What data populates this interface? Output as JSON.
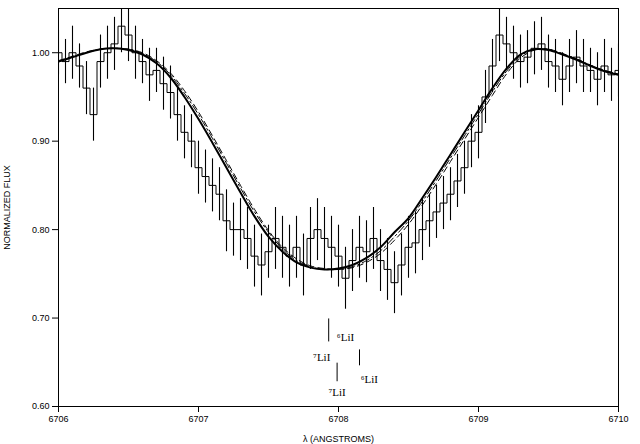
{
  "chart_data": {
    "type": "line",
    "x_label": "λ (ANGSTROMS)",
    "y_label": "NORMALIZED FLUX",
    "xlim": [
      6706,
      6710
    ],
    "xticks": [
      6706,
      6707,
      6708,
      6709,
      6710
    ],
    "ylim": [
      0.6,
      1.05
    ],
    "yticks": [
      {
        "value": 0.6,
        "label": "0.60"
      },
      {
        "value": 0.7,
        "label": "0.70"
      },
      {
        "value": 0.8,
        "label": "0.80"
      },
      {
        "value": 0.9,
        "label": "0.90"
      },
      {
        "value": 1.0,
        "label": "1.00"
      }
    ],
    "grid": false,
    "series": [
      {
        "type": "step",
        "color": "#000000",
        "line_style": "solid",
        "x": [
          6706.0,
          6706.05,
          6706.1,
          6706.15,
          6706.2,
          6706.25,
          6706.3,
          6706.35,
          6706.4,
          6706.45,
          6706.5,
          6706.55,
          6706.6,
          6706.65,
          6706.7,
          6706.75,
          6706.8,
          6706.85,
          6706.9,
          6706.95,
          6707.0,
          6707.05,
          6707.1,
          6707.15,
          6707.2,
          6707.25,
          6707.3,
          6707.35,
          6707.4,
          6707.45,
          6707.5,
          6707.55,
          6707.6,
          6707.65,
          6707.7,
          6707.75,
          6707.8,
          6707.85,
          6707.9,
          6707.95,
          6708.0,
          6708.05,
          6708.1,
          6708.15,
          6708.2,
          6708.25,
          6708.3,
          6708.35,
          6708.4,
          6708.45,
          6708.5,
          6708.55,
          6708.6,
          6708.65,
          6708.7,
          6708.75,
          6708.8,
          6708.85,
          6708.9,
          6708.95,
          6709.0,
          6709.05,
          6709.1,
          6709.15,
          6709.2,
          6709.25,
          6709.3,
          6709.35,
          6709.4,
          6709.45,
          6709.5,
          6709.55,
          6709.6,
          6709.65,
          6709.7,
          6709.75,
          6709.8,
          6709.85,
          6709.9,
          6709.95,
          6710.0
        ],
        "values": [
          1.0,
          0.99,
          1.0,
          0.985,
          0.96,
          0.93,
          0.99,
          1.0,
          1.01,
          1.03,
          1.02,
          1.0,
          0.99,
          0.975,
          0.98,
          0.965,
          0.955,
          0.93,
          0.91,
          0.9,
          0.87,
          0.86,
          0.85,
          0.84,
          0.81,
          0.8,
          0.8,
          0.79,
          0.77,
          0.76,
          0.775,
          0.79,
          0.78,
          0.77,
          0.78,
          0.76,
          0.79,
          0.8,
          0.79,
          0.78,
          0.77,
          0.745,
          0.765,
          0.78,
          0.775,
          0.79,
          0.765,
          0.755,
          0.74,
          0.76,
          0.78,
          0.785,
          0.8,
          0.81,
          0.82,
          0.83,
          0.84,
          0.855,
          0.87,
          0.9,
          0.91,
          0.95,
          0.985,
          1.02,
          1.01,
          1.0,
          0.99,
          0.995,
          1.005,
          1.01,
          0.99,
          0.985,
          0.97,
          0.985,
          0.995,
          0.985,
          0.98,
          0.97,
          0.985,
          0.975,
          0.98
        ],
        "errors": [
          0.025,
          0.025,
          0.03,
          0.025,
          0.03,
          0.03,
          0.03,
          0.03,
          0.03,
          0.03,
          0.03,
          0.03,
          0.025,
          0.03,
          0.025,
          0.03,
          0.03,
          0.03,
          0.03,
          0.03,
          0.03,
          0.03,
          0.03,
          0.03,
          0.035,
          0.03,
          0.035,
          0.035,
          0.035,
          0.035,
          0.03,
          0.035,
          0.035,
          0.035,
          0.035,
          0.035,
          0.035,
          0.035,
          0.035,
          0.035,
          0.035,
          0.035,
          0.035,
          0.035,
          0.035,
          0.035,
          0.035,
          0.035,
          0.035,
          0.035,
          0.035,
          0.035,
          0.035,
          0.03,
          0.03,
          0.03,
          0.03,
          0.03,
          0.03,
          0.03,
          0.03,
          0.03,
          0.03,
          0.03,
          0.03,
          0.03,
          0.03,
          0.03,
          0.03,
          0.03,
          0.03,
          0.03,
          0.03,
          0.03,
          0.03,
          0.03,
          0.025,
          0.03,
          0.03,
          0.03,
          0.03
        ]
      },
      {
        "type": "line",
        "color": "#000000",
        "line_style": "solid",
        "x": [
          6706.0,
          6706.1,
          6706.2,
          6706.3,
          6706.4,
          6706.5,
          6706.6,
          6706.7,
          6706.8,
          6706.9,
          6707.0,
          6707.1,
          6707.2,
          6707.3,
          6707.4,
          6707.5,
          6707.6,
          6707.7,
          6707.8,
          6707.9,
          6708.0,
          6708.1,
          6708.2,
          6708.3,
          6708.4,
          6708.5,
          6708.6,
          6708.7,
          6708.8,
          6708.9,
          6709.0,
          6709.1,
          6709.2,
          6709.3,
          6709.4,
          6709.5,
          6709.6,
          6709.7,
          6709.8,
          6709.9,
          6710.0
        ],
        "values": [
          0.99,
          0.995,
          1.0,
          1.004,
          1.005,
          1.003,
          0.998,
          0.988,
          0.972,
          0.95,
          0.925,
          0.898,
          0.87,
          0.842,
          0.815,
          0.792,
          0.775,
          0.763,
          0.757,
          0.755,
          0.756,
          0.76,
          0.768,
          0.78,
          0.797,
          0.813,
          0.836,
          0.86,
          0.885,
          0.91,
          0.935,
          0.96,
          0.982,
          0.998,
          1.004,
          1.003,
          0.998,
          0.992,
          0.985,
          0.979,
          0.975
        ]
      },
      {
        "type": "line",
        "color": "#000000",
        "line_style": "dashed",
        "x": [
          6706.0,
          6706.1,
          6706.2,
          6706.3,
          6706.4,
          6706.5,
          6706.6,
          6706.7,
          6706.8,
          6706.9,
          6707.0,
          6707.1,
          6707.2,
          6707.3,
          6707.4,
          6707.5,
          6707.6,
          6707.7,
          6707.8,
          6707.9,
          6708.0,
          6708.1,
          6708.2,
          6708.3,
          6708.4,
          6708.5,
          6708.6,
          6708.7,
          6708.8,
          6708.9,
          6709.0,
          6709.1,
          6709.2,
          6709.3,
          6709.4,
          6709.5,
          6709.6,
          6709.7,
          6709.8,
          6709.9,
          6710.0
        ],
        "values": [
          0.991,
          0.996,
          1.001,
          1.004,
          1.005,
          1.004,
          1.0,
          0.991,
          0.977,
          0.957,
          0.933,
          0.906,
          0.878,
          0.85,
          0.823,
          0.799,
          0.78,
          0.767,
          0.759,
          0.756,
          0.755,
          0.757,
          0.763,
          0.773,
          0.788,
          0.806,
          0.828,
          0.852,
          0.877,
          0.902,
          0.927,
          0.952,
          0.976,
          0.994,
          1.003,
          1.004,
          0.999,
          0.993,
          0.986,
          0.98,
          0.976
        ]
      },
      {
        "type": "line",
        "color": "#000000",
        "line_style": "dashdot",
        "x": [
          6706.0,
          6706.1,
          6706.2,
          6706.3,
          6706.4,
          6706.5,
          6706.6,
          6706.7,
          6706.8,
          6706.9,
          6707.0,
          6707.1,
          6707.2,
          6707.3,
          6707.4,
          6707.5,
          6707.6,
          6707.7,
          6707.8,
          6707.9,
          6708.0,
          6708.1,
          6708.2,
          6708.3,
          6708.4,
          6708.5,
          6708.6,
          6708.7,
          6708.8,
          6708.9,
          6709.0,
          6709.1,
          6709.2,
          6709.3,
          6709.4,
          6709.5,
          6709.6,
          6709.7,
          6709.8,
          6709.9,
          6710.0
        ],
        "values": [
          0.99,
          0.995,
          1.0,
          1.004,
          1.005,
          1.004,
          0.999,
          0.99,
          0.975,
          0.954,
          0.93,
          0.903,
          0.875,
          0.847,
          0.82,
          0.797,
          0.778,
          0.765,
          0.758,
          0.755,
          0.755,
          0.758,
          0.765,
          0.776,
          0.792,
          0.81,
          0.832,
          0.856,
          0.881,
          0.906,
          0.931,
          0.956,
          0.979,
          0.996,
          1.004,
          1.004,
          0.999,
          0.993,
          0.986,
          0.98,
          0.976
        ]
      }
    ],
    "markers": [
      {
        "x": 6707.93,
        "y1": 0.673,
        "y2": 0.699
      },
      {
        "x": 6708.15,
        "y1": 0.646,
        "y2": 0.664
      },
      {
        "x": 6707.99,
        "y1": 0.628,
        "y2": 0.649
      }
    ],
    "annotations": [
      {
        "text": "⁷LiI",
        "x": 6707.88,
        "y": 0.655
      },
      {
        "text": "⁶LiI",
        "x": 6708.05,
        "y": 0.678
      },
      {
        "text": "⁷LiI",
        "x": 6707.99,
        "y": 0.616
      },
      {
        "text": "⁶LiI",
        "x": 6708.22,
        "y": 0.63
      }
    ]
  }
}
